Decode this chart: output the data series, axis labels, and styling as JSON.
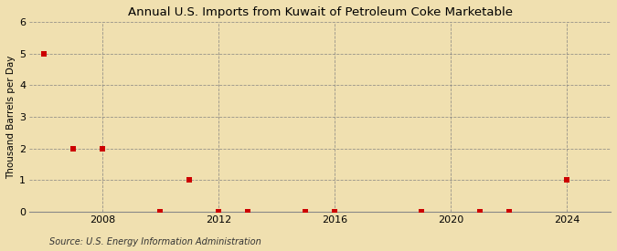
{
  "title": "Annual U.S. Imports from Kuwait of Petroleum Coke Marketable",
  "ylabel": "Thousand Barrels per Day",
  "source": "Source: U.S. Energy Information Administration",
  "background_color": "#f0e0b0",
  "plot_bg_color": "#f0e0b0",
  "marker_color": "#cc0000",
  "marker_size": 5,
  "xlim": [
    2005.5,
    2025.5
  ],
  "ylim": [
    0,
    6
  ],
  "yticks": [
    0,
    1,
    2,
    3,
    4,
    5,
    6
  ],
  "xticks": [
    2008,
    2012,
    2016,
    2020,
    2024
  ],
  "grid_xticks": [
    2008,
    2012,
    2016,
    2020,
    2024
  ],
  "data_x": [
    2006,
    2007,
    2008,
    2010,
    2011,
    2012,
    2013,
    2015,
    2016,
    2019,
    2021,
    2022,
    2024
  ],
  "data_y": [
    5,
    2,
    2,
    0,
    1,
    0,
    0,
    0,
    0,
    0,
    0,
    0,
    1
  ],
  "title_fontsize": 9.5,
  "ylabel_fontsize": 7.5,
  "tick_fontsize": 8,
  "source_fontsize": 7
}
